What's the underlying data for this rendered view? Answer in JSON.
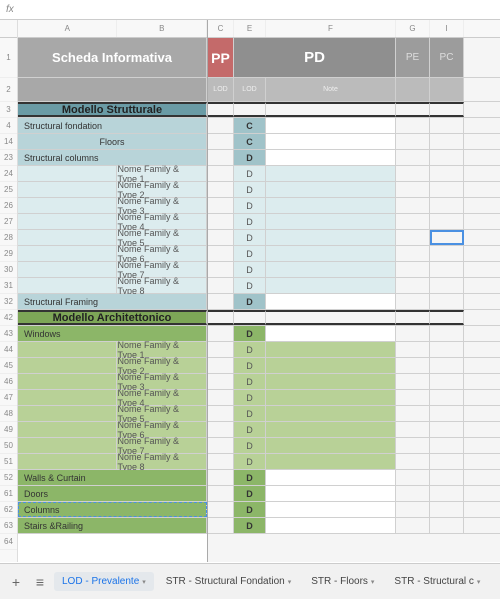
{
  "formula_bar": "fx",
  "columns_left": [
    "A",
    "B"
  ],
  "columns_right": [
    "C",
    "E",
    "F",
    "G",
    "I"
  ],
  "row_headers": [
    "1",
    "2",
    "3",
    "4",
    "14",
    "23",
    "24",
    "25",
    "26",
    "27",
    "28",
    "29",
    "30",
    "31",
    "32",
    "42",
    "43",
    "44",
    "45",
    "46",
    "47",
    "48",
    "49",
    "50",
    "51",
    "52",
    "61",
    "62",
    "63",
    "64"
  ],
  "header": {
    "scheda": "Scheda Informativa",
    "pp": "PP",
    "pd": "PD",
    "pe": "PE",
    "pc": "PC",
    "sub_lod": "LOD",
    "sub_note": "Note"
  },
  "sections": [
    {
      "title": "Modello Strutturale",
      "style": "strut",
      "rows": [
        {
          "type": "cat",
          "label": "Structural fondation",
          "lod": "C"
        },
        {
          "type": "cat",
          "label": "Floors",
          "lod": "C",
          "align": "center"
        },
        {
          "type": "cat",
          "label": "Structural columns",
          "lod": "D"
        },
        {
          "type": "item",
          "label": "Nome Family & Type 1",
          "lod": "D"
        },
        {
          "type": "item",
          "label": "Nome Family & Type 2",
          "lod": "D"
        },
        {
          "type": "item",
          "label": "Nome Family & Type 3",
          "lod": "D"
        },
        {
          "type": "item",
          "label": "Nome Family & Type 4",
          "lod": "D"
        },
        {
          "type": "item",
          "label": "Nome Family & Type 5",
          "lod": "D"
        },
        {
          "type": "item",
          "label": "Nome Family & Type 6",
          "lod": "D"
        },
        {
          "type": "item",
          "label": "Nome Family & Type 7",
          "lod": "D"
        },
        {
          "type": "item",
          "label": "Nome Family & Type 8",
          "lod": "D"
        },
        {
          "type": "cat",
          "label": "Structural Framing",
          "lod": "D"
        }
      ]
    },
    {
      "title": "Modello Architettonico",
      "style": "arch",
      "rows": [
        {
          "type": "cat",
          "label": "Windows",
          "lod": "D"
        },
        {
          "type": "item",
          "label": "Nome Family & Type 1",
          "lod": "D"
        },
        {
          "type": "item",
          "label": "Nome Family & Type 2",
          "lod": "D"
        },
        {
          "type": "item",
          "label": "Nome Family & Type 3",
          "lod": "D"
        },
        {
          "type": "item",
          "label": "Nome Family & Type 4",
          "lod": "D"
        },
        {
          "type": "item",
          "label": "Nome Family & Type 5",
          "lod": "D"
        },
        {
          "type": "item",
          "label": "Nome Family & Type 6",
          "lod": "D"
        },
        {
          "type": "item",
          "label": "Nome Family & Type 7",
          "lod": "D"
        },
        {
          "type": "item",
          "label": "Nome Family & Type 8",
          "lod": "D"
        },
        {
          "type": "cat",
          "label": "Walls & Curtain",
          "lod": "D"
        },
        {
          "type": "cat",
          "label": "Doors",
          "lod": "D"
        },
        {
          "type": "cat",
          "label": "Columns",
          "lod": "D",
          "dashed": true
        },
        {
          "type": "cat",
          "label": "Stairs &Railing",
          "lod": "D"
        }
      ]
    }
  ],
  "tabs": [
    {
      "label": "LOD - Prevalente",
      "active": true
    },
    {
      "label": "STR - Structural Fondation"
    },
    {
      "label": "STR -  Floors"
    },
    {
      "label": "STR - Structural c"
    }
  ],
  "colors": {
    "strut_header": "#6a9ba5",
    "strut_cat": "#b8d4d9",
    "strut_item": "#dcecee",
    "arch_header": "#7da657",
    "arch_cat": "#8cb668",
    "arch_item": "#b8d197",
    "pp": "#c46a6a",
    "pd": "#8f8f8f"
  }
}
